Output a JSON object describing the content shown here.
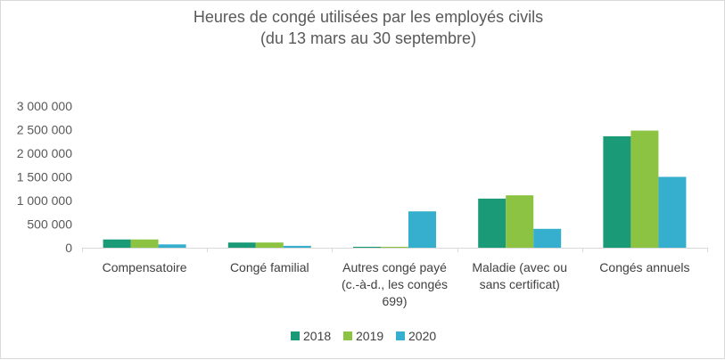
{
  "chart_data": {
    "type": "bar",
    "title_lines": [
      "Heures de congé utilisées par les employés civils",
      "(du 13 mars au 30 septembre)"
    ],
    "categories": [
      [
        "Compensatoire"
      ],
      [
        "Congé familial"
      ],
      [
        "Autres congé payé",
        "(c.-à-d., les congés",
        "699)"
      ],
      [
        "Maladie (avec ou",
        "sans certificat)"
      ],
      [
        "Congés annuels"
      ]
    ],
    "series": [
      {
        "name": "2018",
        "color": "#1b9a77",
        "values": [
          175000,
          110000,
          20000,
          1040000,
          2360000
        ]
      },
      {
        "name": "2019",
        "color": "#8cc342",
        "values": [
          175000,
          110000,
          20000,
          1110000,
          2480000
        ]
      },
      {
        "name": "2020",
        "color": "#36aecd",
        "values": [
          70000,
          40000,
          770000,
          400000,
          1500000
        ]
      }
    ],
    "yticks": [
      {
        "value": 0,
        "label": "0"
      },
      {
        "value": 500000,
        "label": "500 000"
      },
      {
        "value": 1000000,
        "label": "1 000 000"
      },
      {
        "value": 1500000,
        "label": "1 500 000"
      },
      {
        "value": 2000000,
        "label": "2 000 000"
      },
      {
        "value": 2500000,
        "label": "2 500 000"
      },
      {
        "value": 3000000,
        "label": "3 000 000"
      }
    ],
    "ylim": [
      0,
      3000000
    ],
    "xlabel": "",
    "ylabel": "",
    "grid": false,
    "legend_position": "bottom"
  }
}
